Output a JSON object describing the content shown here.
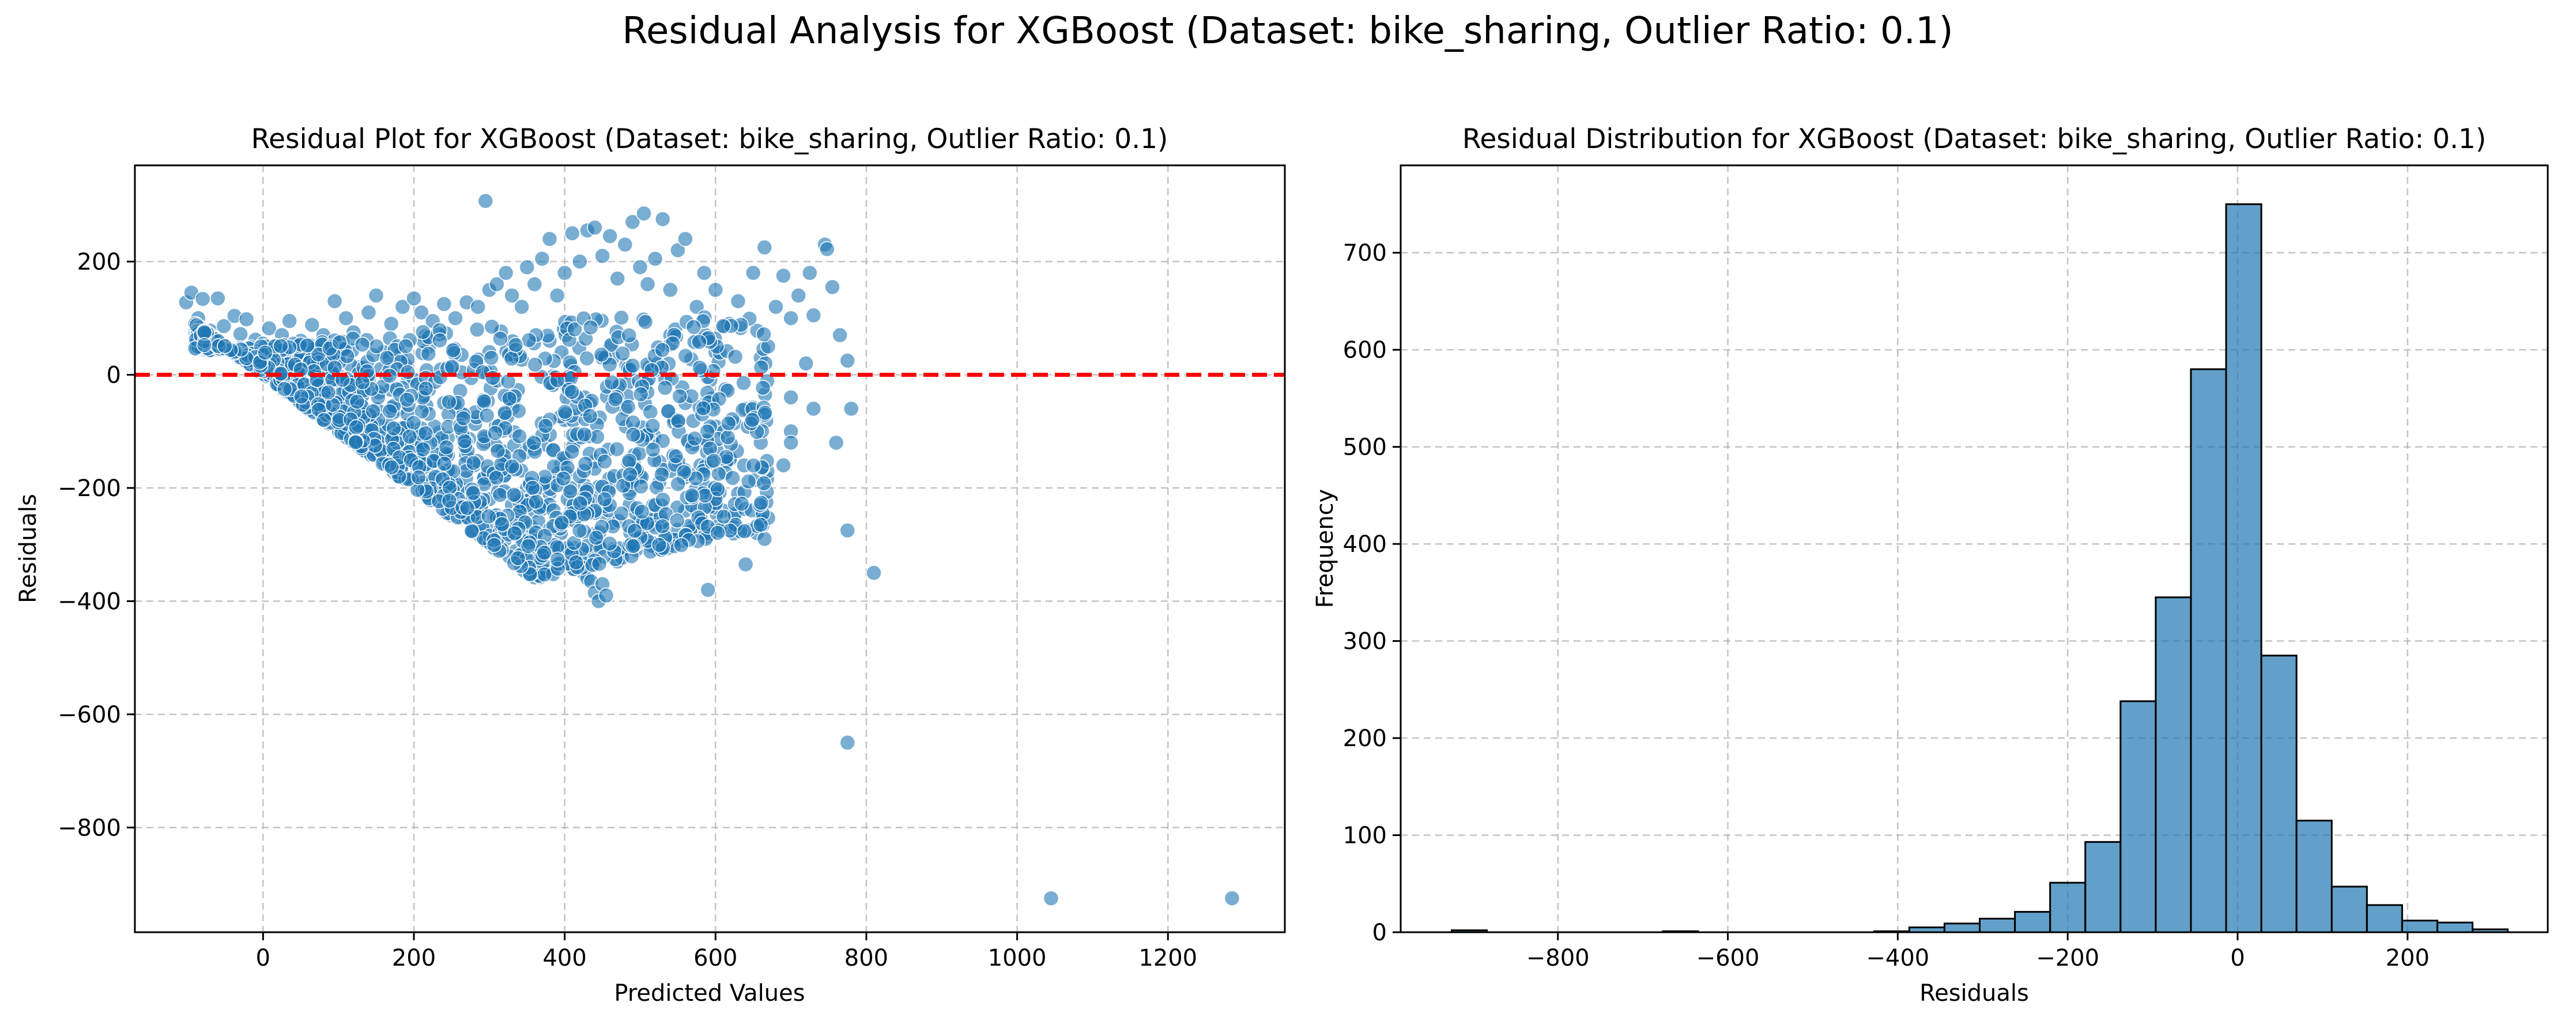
{
  "suptitle": "Residual Analysis for XGBoost (Dataset: bike_sharing, Outlier Ratio: 0.1)",
  "colors": {
    "points": "#1f77b4",
    "bars": "#1f77b4",
    "zero_line": "#ff0000",
    "grid": "#b0b0b0"
  },
  "chart_data": [
    {
      "type": "scatter",
      "title": "Residual Plot for XGBoost (Dataset: bike_sharing, Outlier Ratio: 0.1)",
      "xlabel": "Predicted Values",
      "ylabel": "Residuals",
      "xlim": [
        -170,
        1355
      ],
      "ylim": [
        -985,
        370
      ],
      "xticks": [
        0,
        200,
        400,
        600,
        800,
        1000,
        1200
      ],
      "yticks": [
        200,
        0,
        -200,
        -400,
        -600,
        -800
      ],
      "grid": true,
      "reference_line": {
        "y": 0,
        "style": "dashed",
        "color": "red"
      },
      "note": "dense cloud of roughly 2800 points; bottom-left edge follows residual = -predicted",
      "points": [
        [
          -102,
          128
        ],
        [
          -95,
          145
        ],
        [
          -86,
          100
        ],
        [
          -80,
          134
        ],
        [
          -70,
          78
        ],
        [
          -60,
          135
        ],
        [
          -52,
          86
        ],
        [
          -38,
          104
        ],
        [
          -30,
          72
        ],
        [
          -22,
          98
        ],
        [
          -10,
          62
        ],
        [
          0,
          55
        ],
        [
          8,
          82
        ],
        [
          15,
          42
        ],
        [
          25,
          70
        ],
        [
          35,
          95
        ],
        [
          50,
          60
        ],
        [
          65,
          88
        ],
        [
          80,
          70
        ],
        [
          95,
          130
        ],
        [
          110,
          100
        ],
        [
          120,
          75
        ],
        [
          140,
          110
        ],
        [
          150,
          140
        ],
        [
          170,
          90
        ],
        [
          185,
          120
        ],
        [
          200,
          135
        ],
        [
          210,
          110
        ],
        [
          225,
          95
        ],
        [
          240,
          125
        ],
        [
          255,
          100
        ],
        [
          270,
          128
        ],
        [
          285,
          120
        ],
        [
          300,
          150
        ],
        [
          310,
          160
        ],
        [
          322,
          180
        ],
        [
          330,
          140
        ],
        [
          343,
          120
        ],
        [
          350,
          190
        ],
        [
          360,
          160
        ],
        [
          370,
          205
        ],
        [
          380,
          240
        ],
        [
          390,
          140
        ],
        [
          400,
          180
        ],
        [
          410,
          250
        ],
        [
          420,
          200
        ],
        [
          430,
          255
        ],
        [
          440,
          260
        ],
        [
          450,
          210
        ],
        [
          460,
          245
        ],
        [
          470,
          170
        ],
        [
          480,
          230
        ],
        [
          490,
          270
        ],
        [
          500,
          190
        ],
        [
          505,
          285
        ],
        [
          510,
          160
        ],
        [
          520,
          205
        ],
        [
          530,
          275
        ],
        [
          540,
          150
        ],
        [
          550,
          220
        ],
        [
          560,
          240
        ],
        [
          575,
          120
        ],
        [
          585,
          180
        ],
        [
          600,
          150
        ],
        [
          618,
          90
        ],
        [
          630,
          130
        ],
        [
          650,
          180
        ],
        [
          665,
          225
        ],
        [
          680,
          120
        ],
        [
          690,
          175
        ],
        [
          700,
          100
        ],
        [
          710,
          140
        ],
        [
          725,
          180
        ],
        [
          730,
          105
        ],
        [
          745,
          230
        ],
        [
          748,
          222
        ],
        [
          755,
          155
        ],
        [
          765,
          70
        ],
        [
          775,
          25
        ],
        [
          295,
          307
        ],
        [
          40,
          30
        ],
        [
          100,
          30
        ],
        [
          160,
          40
        ],
        [
          220,
          50
        ],
        [
          300,
          40
        ],
        [
          380,
          60
        ],
        [
          460,
          50
        ],
        [
          540,
          70
        ],
        [
          600,
          40
        ],
        [
          660,
          30
        ],
        [
          720,
          20
        ],
        [
          60,
          -30
        ],
        [
          120,
          -40
        ],
        [
          180,
          -60
        ],
        [
          240,
          -50
        ],
        [
          320,
          -70
        ],
        [
          400,
          -80
        ],
        [
          480,
          -60
        ],
        [
          560,
          -50
        ],
        [
          640,
          -60
        ],
        [
          700,
          -40
        ],
        [
          780,
          -60
        ],
        [
          90,
          -60
        ],
        [
          130,
          -100
        ],
        [
          170,
          -130
        ],
        [
          210,
          -160
        ],
        [
          250,
          -190
        ],
        [
          270,
          -210
        ],
        [
          300,
          -220
        ],
        [
          330,
          -230
        ],
        [
          360,
          -240
        ],
        [
          400,
          -260
        ],
        [
          200,
          -120
        ],
        [
          240,
          -140
        ],
        [
          280,
          -160
        ],
        [
          320,
          -180
        ],
        [
          350,
          -200
        ],
        [
          380,
          -210
        ],
        [
          420,
          -220
        ],
        [
          460,
          -200
        ],
        [
          500,
          -180
        ],
        [
          540,
          -170
        ],
        [
          580,
          -160
        ],
        [
          620,
          -150
        ],
        [
          660,
          -120
        ],
        [
          700,
          -100
        ],
        [
          230,
          -220
        ],
        [
          260,
          -200
        ],
        [
          290,
          -235
        ],
        [
          310,
          -250
        ],
        [
          330,
          -275
        ],
        [
          345,
          -290
        ],
        [
          355,
          -310
        ],
        [
          370,
          -320
        ],
        [
          385,
          -300
        ],
        [
          395,
          -280
        ],
        [
          415,
          -330
        ],
        [
          425,
          -350
        ],
        [
          430,
          -360
        ],
        [
          435,
          -365
        ],
        [
          440,
          -385
        ],
        [
          445,
          -400
        ],
        [
          450,
          -370
        ],
        [
          455,
          -390
        ],
        [
          470,
          -330
        ],
        [
          480,
          -310
        ],
        [
          500,
          -280
        ],
        [
          510,
          -260
        ],
        [
          520,
          -305
        ],
        [
          535,
          -300
        ],
        [
          545,
          -290
        ],
        [
          560,
          -240
        ],
        [
          575,
          -240
        ],
        [
          590,
          -380
        ],
        [
          600,
          -210
        ],
        [
          610,
          -240
        ],
        [
          630,
          -210
        ],
        [
          640,
          -335
        ],
        [
          655,
          -280
        ],
        [
          665,
          -290
        ],
        [
          690,
          -160
        ],
        [
          700,
          -120
        ],
        [
          730,
          -60
        ],
        [
          760,
          -120
        ],
        [
          775,
          -275
        ],
        [
          810,
          -350
        ],
        [
          775,
          -650
        ],
        [
          1045,
          -925
        ],
        [
          1285,
          -925
        ]
      ]
    },
    {
      "type": "bar",
      "subtype": "histogram",
      "title": "Residual Distribution for XGBoost (Dataset: bike_sharing, Outlier Ratio: 0.1)",
      "xlabel": "Residuals",
      "ylabel": "Frequency",
      "xlim": [
        -985,
        365
      ],
      "ylim": [
        0,
        790
      ],
      "xticks": [
        -800,
        -600,
        -400,
        -200,
        0,
        200
      ],
      "yticks": [
        0,
        100,
        200,
        300,
        400,
        500,
        600,
        700
      ],
      "grid": true,
      "bin_start": -925,
      "bin_width": 41.43,
      "values": [
        2,
        0,
        0,
        0,
        0,
        0,
        1,
        0,
        0,
        0,
        0,
        0,
        1,
        5,
        9,
        14,
        21,
        51,
        93,
        238,
        345,
        580,
        750,
        285,
        115,
        47,
        28,
        12,
        10,
        3
      ]
    }
  ]
}
